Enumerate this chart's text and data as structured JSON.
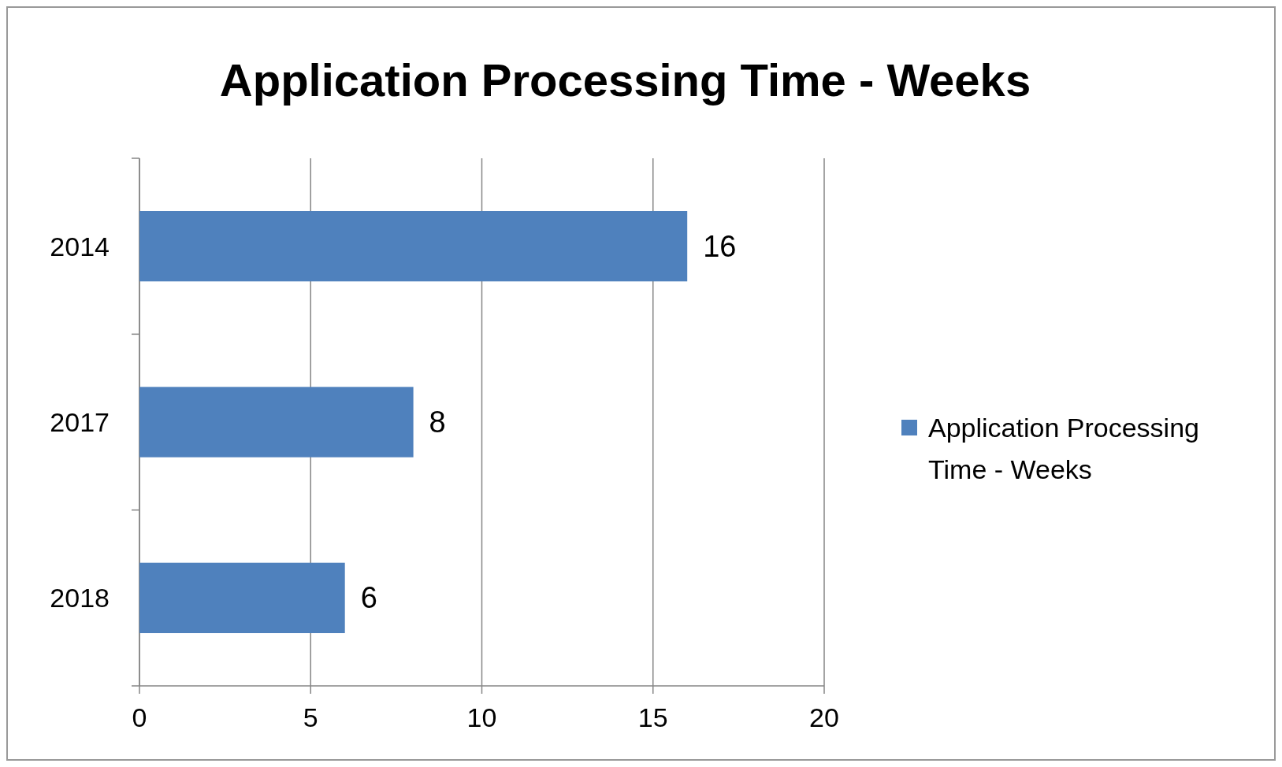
{
  "chart_data": {
    "type": "bar",
    "orientation": "horizontal",
    "title": "Application Processing Time - Weeks",
    "categories": [
      "2014",
      "2017",
      "2018"
    ],
    "series": [
      {
        "name": "Application Processing Time - Weeks",
        "color": "#4f81bd",
        "values": [
          16,
          8,
          6
        ]
      }
    ],
    "xlim": [
      0,
      20
    ],
    "xticks": [
      0,
      5,
      10,
      15,
      20
    ],
    "grid": "x",
    "legend": "right",
    "data_labels": true
  }
}
